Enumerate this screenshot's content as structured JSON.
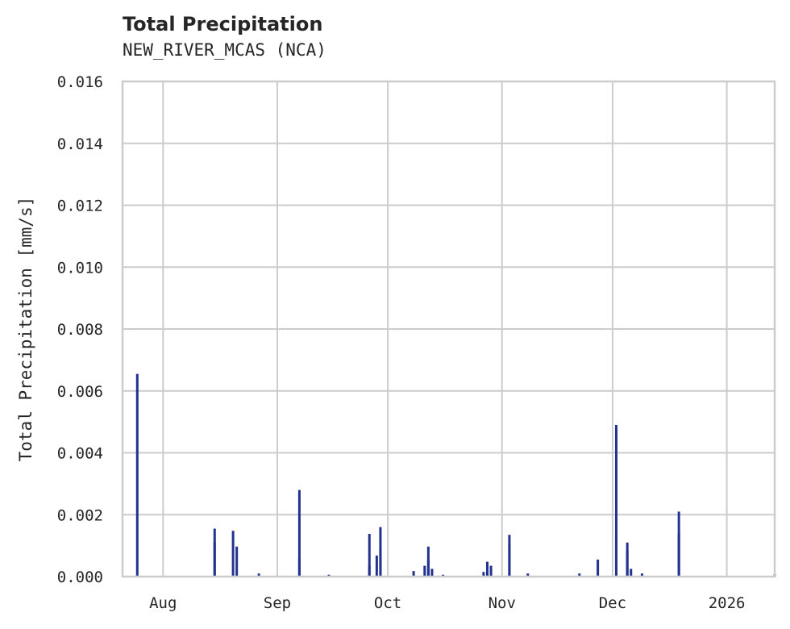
{
  "header": {
    "title": "Total Precipitation",
    "subtitle": "NEW_RIVER_MCAS (NCA)"
  },
  "colors": {
    "series": "#23318f",
    "grid": "#cccccc",
    "text": "#262626"
  },
  "chart_data": {
    "type": "bar",
    "title": "Total Precipitation",
    "subtitle": "NEW_RIVER_MCAS (NCA)",
    "xlabel": "",
    "ylabel": "Total Precipitation [mm/s]",
    "ylim": [
      0,
      0.016
    ],
    "xlim": [
      "2025-07-21",
      "2026-01-14"
    ],
    "grid": true,
    "legend": null,
    "y_ticks": [
      "0.000",
      "0.002",
      "0.004",
      "0.006",
      "0.008",
      "0.010",
      "0.012",
      "0.014",
      "0.016"
    ],
    "x_ticks": [
      {
        "label": "Aug",
        "date": "2025-08-01"
      },
      {
        "label": "Sep",
        "date": "2025-09-01"
      },
      {
        "label": "Oct",
        "date": "2025-10-01"
      },
      {
        "label": "Nov",
        "date": "2025-11-01"
      },
      {
        "label": "Dec",
        "date": "2025-12-01"
      },
      {
        "label": "2026",
        "date": "2026-01-01"
      }
    ],
    "series": [
      {
        "name": "Total Precipitation",
        "points": [
          {
            "x": "2025-07-25",
            "y": 0.00655
          },
          {
            "x": "2025-08-15",
            "y": 0.0011
          },
          {
            "x": "2025-08-15",
            "y": 0.00155
          },
          {
            "x": "2025-08-20",
            "y": 0.00148
          },
          {
            "x": "2025-08-21",
            "y": 0.00097
          },
          {
            "x": "2025-08-27",
            "y": 0.0001
          },
          {
            "x": "2025-09-07",
            "y": 0.0028
          },
          {
            "x": "2025-09-07",
            "y": 0.0006
          },
          {
            "x": "2025-09-15",
            "y": 6e-05
          },
          {
            "x": "2025-09-26",
            "y": 0.00138
          },
          {
            "x": "2025-09-26",
            "y": 0.00035
          },
          {
            "x": "2025-09-28",
            "y": 0.00068
          },
          {
            "x": "2025-09-29",
            "y": 0.0016
          },
          {
            "x": "2025-09-29",
            "y": 0.00085
          },
          {
            "x": "2025-10-08",
            "y": 0.00018
          },
          {
            "x": "2025-10-11",
            "y": 0.00035
          },
          {
            "x": "2025-10-12",
            "y": 0.00097
          },
          {
            "x": "2025-10-12",
            "y": 0.00055
          },
          {
            "x": "2025-10-13",
            "y": 0.00025
          },
          {
            "x": "2025-10-16",
            "y": 6e-05
          },
          {
            "x": "2025-10-27",
            "y": 0.00015
          },
          {
            "x": "2025-10-28",
            "y": 0.00048
          },
          {
            "x": "2025-10-29",
            "y": 0.00035
          },
          {
            "x": "2025-11-03",
            "y": 0.00105
          },
          {
            "x": "2025-11-03",
            "y": 0.00135
          },
          {
            "x": "2025-11-08",
            "y": 0.0001
          },
          {
            "x": "2025-11-22",
            "y": 0.0001
          },
          {
            "x": "2025-11-27",
            "y": 0.00055
          },
          {
            "x": "2025-12-02",
            "y": 0.0049
          },
          {
            "x": "2025-12-02",
            "y": 0.0013
          },
          {
            "x": "2025-12-05",
            "y": 0.0011
          },
          {
            "x": "2025-12-05",
            "y": 0.00085
          },
          {
            "x": "2025-12-06",
            "y": 0.00025
          },
          {
            "x": "2025-12-09",
            "y": 0.0001
          },
          {
            "x": "2025-12-19",
            "y": 0.0021
          },
          {
            "x": "2025-12-19",
            "y": 0.0014
          },
          {
            "x": "2026-01-14",
            "y": 8e-05
          }
        ]
      }
    ]
  }
}
